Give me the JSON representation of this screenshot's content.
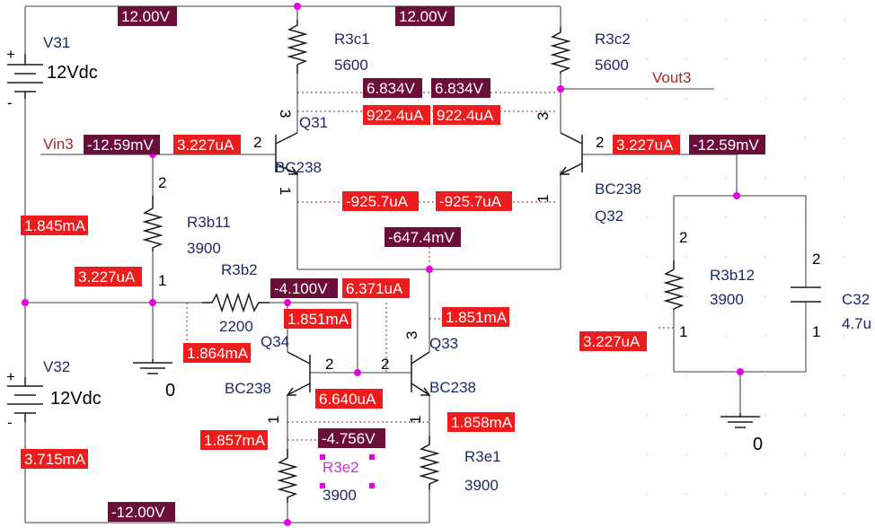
{
  "components": {
    "V31": {
      "ref": "V31",
      "value": "12Vdc"
    },
    "V32": {
      "ref": "V32",
      "value": "12Vdc"
    },
    "R3c1": {
      "ref": "R3c1",
      "value": "5600"
    },
    "R3c2": {
      "ref": "R3c2",
      "value": "5600"
    },
    "R3b11": {
      "ref": "R3b11",
      "value": "3900"
    },
    "R3b2": {
      "ref": "R3b2",
      "value": "2200"
    },
    "R3b12": {
      "ref": "R3b12",
      "value": "3900"
    },
    "R3e1": {
      "ref": "R3e1",
      "value": "3900"
    },
    "R3e2": {
      "ref": "R3e2",
      "value": "3900"
    },
    "C32": {
      "ref": "C32",
      "value": "4.7u"
    },
    "Q31": {
      "ref": "Q31",
      "model": "BC238"
    },
    "Q32": {
      "ref": "Q32",
      "model": "BC238"
    },
    "Q33": {
      "ref": "Q33",
      "model": "BC238"
    },
    "Q34": {
      "ref": "Q34",
      "model": "BC238"
    }
  },
  "nets": {
    "vin": "Vin3",
    "vout": "Vout3",
    "ground_left": "0",
    "ground_right": "0"
  },
  "pins": {
    "p1": "1",
    "p2": "2",
    "p3": "3"
  },
  "voltages": {
    "top_left": "12.00V",
    "top_right": "12.00V",
    "bottom": "-12.00V",
    "col_q31": "6.834V",
    "col_q32": "6.834V",
    "vin": "-12.59mV",
    "vbase_q32": "-12.59mV",
    "emitter_node": "-647.4mV",
    "col_q34": "-4.100V",
    "emitter_bottom": "-4.756V"
  },
  "currents": {
    "ic_q31": "922.4uA",
    "ic_q32": "922.4uA",
    "ib_q31": "3.227uA",
    "ib_q32": "3.227uA",
    "ie_q31": "-925.7uA",
    "ie_q32": "-925.7uA",
    "v31": "1.845mA",
    "r3b11": "3.227uA",
    "r3b12": "3.227uA",
    "r3b2": "1.864mA",
    "ic_q34": "1.851mA",
    "ic_q33": "1.851mA",
    "ic_q33_top": "6.371uA",
    "ib_q3334": "6.640uA",
    "ie_q34": "1.857mA",
    "ie_q33": "1.858mA",
    "v32": "3.715mA"
  }
}
